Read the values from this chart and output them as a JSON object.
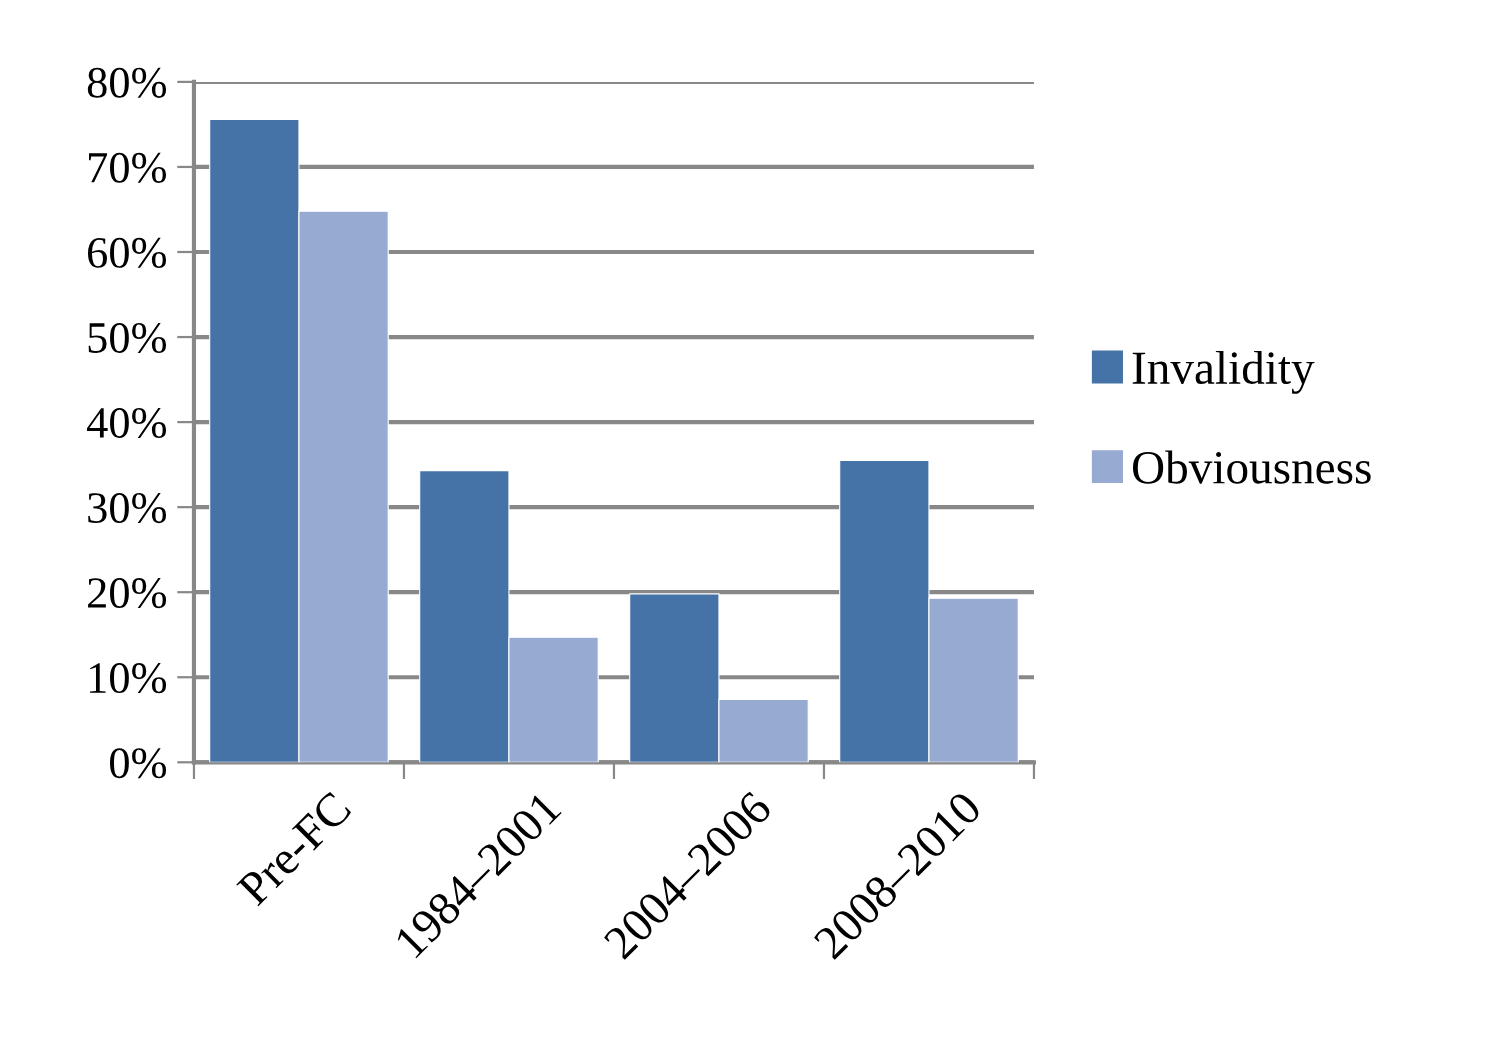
{
  "chart_data": {
    "type": "bar",
    "categories": [
      "Pre-FC",
      "1984–2001",
      "2004–2006",
      "2008–2010"
    ],
    "series": [
      {
        "name": "Invalidity",
        "color": "#4573a7",
        "values": [
          75.6,
          34.3,
          19.8,
          35.5
        ]
      },
      {
        "name": "Obviousness",
        "color": "#97aad1",
        "values": [
          64.8,
          14.7,
          7.4,
          19.3
        ]
      }
    ],
    "ylim": [
      0,
      80
    ],
    "yticks": [
      {
        "value": 0,
        "label": "0%"
      },
      {
        "value": 10,
        "label": "10%"
      },
      {
        "value": 20,
        "label": "20%"
      },
      {
        "value": 30,
        "label": "30%"
      },
      {
        "value": 40,
        "label": "40%"
      },
      {
        "value": 50,
        "label": "50%"
      },
      {
        "value": 60,
        "label": "60%"
      },
      {
        "value": 70,
        "label": "70%"
      },
      {
        "value": 80,
        "label": "80%"
      }
    ],
    "grid": "y",
    "legend": "right"
  }
}
